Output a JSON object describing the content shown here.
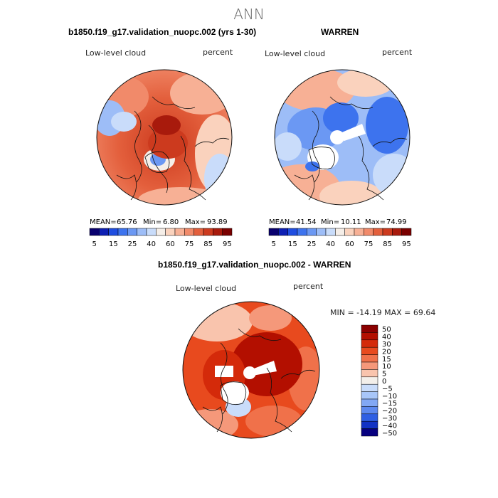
{
  "title": "ANN",
  "panel_a": {
    "case_title": "b1850.f19_g17.validation_nuopc.002 (yrs 1-30)",
    "variable": "Low-level cloud",
    "units": "percent",
    "mean_label": "MEAN=",
    "mean": "65.76",
    "min_label": "Min=",
    "min": "6.80",
    "max_label": "Max=",
    "max": "93.89"
  },
  "panel_b": {
    "case_title": "WARREN",
    "variable": "Low-level cloud",
    "units": "percent",
    "mean_label": "MEAN=",
    "mean": "41.54",
    "min_label": "Min=",
    "min": "10.11",
    "max_label": "Max=",
    "max": "74.99"
  },
  "panel_c": {
    "case_title": "b1850.f19_g17.validation_nuopc.002 - WARREN",
    "variable": "Low-level cloud",
    "units": "percent",
    "minmax": "MIN = -14.19 MAX =  69.64"
  },
  "chart_data": [
    {
      "type": "heatmap",
      "title": "b1850.f19_g17.validation_nuopc.002 (yrs 1-30)",
      "variable": "Low-level cloud",
      "units": "percent",
      "projection": "north polar stereographic",
      "stats": {
        "mean": 65.76,
        "min": 6.8,
        "max": 93.89
      },
      "colorbar_levels": [
        5,
        10,
        15,
        20,
        25,
        30,
        40,
        50,
        60,
        70,
        75,
        80,
        85,
        90,
        95
      ],
      "colorbar_labels": [
        "5",
        "15",
        "25",
        "40",
        "60",
        "75",
        "85",
        "95"
      ]
    },
    {
      "type": "heatmap",
      "title": "WARREN",
      "variable": "Low-level cloud",
      "units": "percent",
      "projection": "north polar stereographic",
      "stats": {
        "mean": 41.54,
        "min": 10.11,
        "max": 74.99
      },
      "colorbar_levels": [
        5,
        10,
        15,
        20,
        25,
        30,
        40,
        50,
        60,
        70,
        75,
        80,
        85,
        90,
        95
      ],
      "colorbar_labels": [
        "5",
        "15",
        "25",
        "40",
        "60",
        "75",
        "85",
        "95"
      ]
    },
    {
      "type": "heatmap",
      "title": "b1850.f19_g17.validation_nuopc.002 - WARREN",
      "variable": "Low-level cloud",
      "units": "percent",
      "projection": "north polar stereographic",
      "stats": {
        "min": -14.19,
        "max": 69.64
      },
      "colorbar_levels": [
        50,
        40,
        30,
        20,
        15,
        10,
        5,
        0,
        -5,
        -10,
        -15,
        -20,
        -30,
        -40,
        -50
      ],
      "colorbar_labels": [
        "50",
        "40",
        "30",
        "20",
        "15",
        "10",
        "5",
        "0",
        "−5",
        "−10",
        "−15",
        "−20",
        "−30",
        "−40",
        "−50"
      ]
    }
  ],
  "palettes": {
    "seq": [
      "#08006e",
      "#0d1fb3",
      "#1f4de0",
      "#3d73ee",
      "#6b98f3",
      "#9dbdf7",
      "#c9dcfa",
      "#f5eee8",
      "#fad2bd",
      "#f7b095",
      "#f18a6a",
      "#e35f3c",
      "#cc3a1e",
      "#a81a0c",
      "#7a0000"
    ],
    "diff_top_down": [
      "#8b0000",
      "#b30f00",
      "#d42a0a",
      "#e84a1e",
      "#f0714a",
      "#f5987a",
      "#f9c4ad",
      "#f3efea",
      "#c9dcfa",
      "#a8c6f8",
      "#82a8f4",
      "#5d89ef",
      "#2f5fe3",
      "#1232c4",
      "#07007f"
    ]
  }
}
